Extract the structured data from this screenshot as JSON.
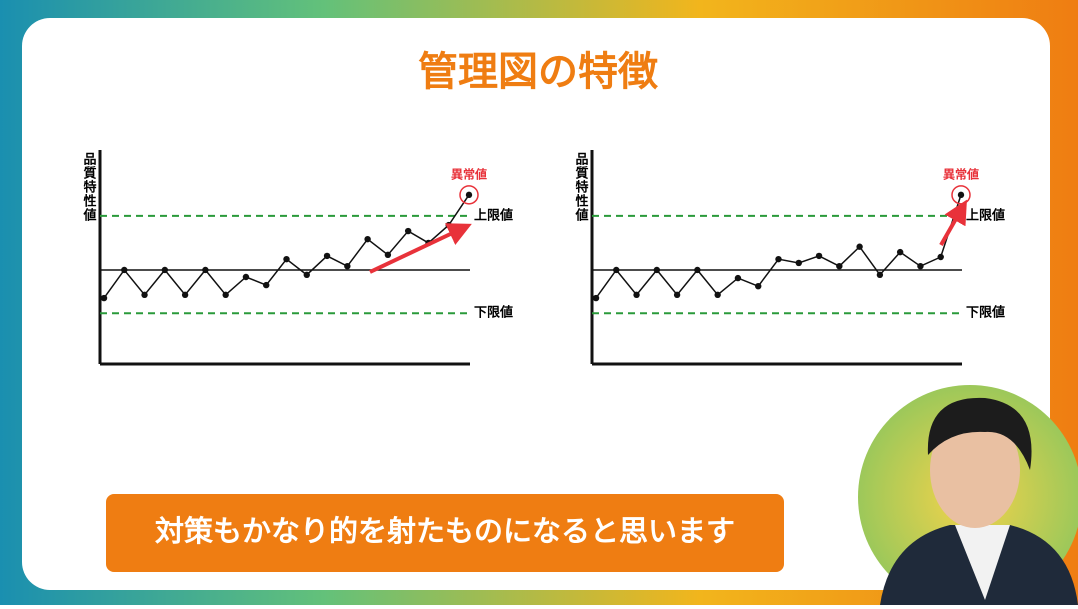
{
  "slide_title": "管理図の特徴",
  "caption": "対策もかなり的を射たものになると思います",
  "chart_data": [
    {
      "type": "line",
      "y_label": "品質特性値",
      "upper_label": "上限値",
      "lower_label": "下限値",
      "outlier_label": "異常値",
      "center": 0,
      "upper_limit": 1,
      "lower_limit": -0.8,
      "ylim": [
        -1.74,
        2.22
      ],
      "values": [
        -0.52,
        0,
        -0.46,
        0,
        -0.46,
        0,
        -0.46,
        -0.13,
        -0.28,
        0.2,
        -0.09,
        0.26,
        0.07,
        0.57,
        0.28,
        0.72,
        0.5,
        0.83,
        1.39
      ]
    },
    {
      "type": "line",
      "y_label": "品質特性値",
      "upper_label": "上限値",
      "lower_label": "下限値",
      "outlier_label": "異常値",
      "center": 0,
      "upper_limit": 1,
      "lower_limit": -0.8,
      "ylim": [
        -1.74,
        2.22
      ],
      "values": [
        -0.52,
        0,
        -0.46,
        0,
        -0.46,
        0,
        -0.46,
        -0.15,
        -0.3,
        0.2,
        0.13,
        0.26,
        0.07,
        0.43,
        -0.09,
        0.33,
        0.07,
        0.24,
        1.39
      ]
    }
  ]
}
